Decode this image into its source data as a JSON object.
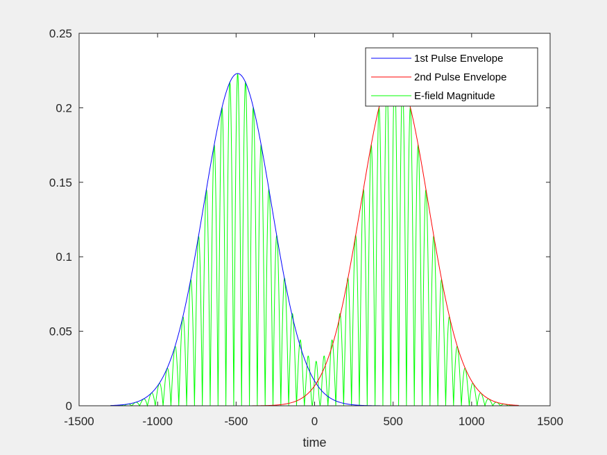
{
  "chart_data": {
    "type": "line",
    "title": "",
    "xlabel": "time",
    "ylabel": "",
    "xlim": [
      -1500,
      1500
    ],
    "ylim": [
      0,
      0.25
    ],
    "xticks": [
      -1500,
      -1000,
      -500,
      0,
      500,
      1000,
      1500
    ],
    "xtick_labels": [
      "-1500",
      "-1000",
      "-500",
      "0",
      "500",
      "1000",
      "1500"
    ],
    "yticks": [
      0,
      0.05,
      0.1,
      0.15,
      0.2,
      0.25
    ],
    "ytick_labels": [
      "0",
      "0.05",
      "0.1",
      "0.15",
      "0.2",
      "0.25"
    ],
    "grid": false,
    "legend_position": "top-right",
    "x_range": [
      -1300,
      1300
    ],
    "series": [
      {
        "name": "1st Pulse Envelope",
        "color": "#0000ff",
        "kind": "gaussian",
        "amplitude": 0.223,
        "center": -490,
        "sigma": 215
      },
      {
        "name": "2nd Pulse Envelope",
        "color": "#ff0000",
        "kind": "gaussian",
        "amplitude": 0.223,
        "center": 510,
        "sigma": 215
      },
      {
        "name": "E-field Magnitude",
        "color": "#00ff00",
        "kind": "oscillating-magnitude",
        "period": 50
      }
    ]
  }
}
